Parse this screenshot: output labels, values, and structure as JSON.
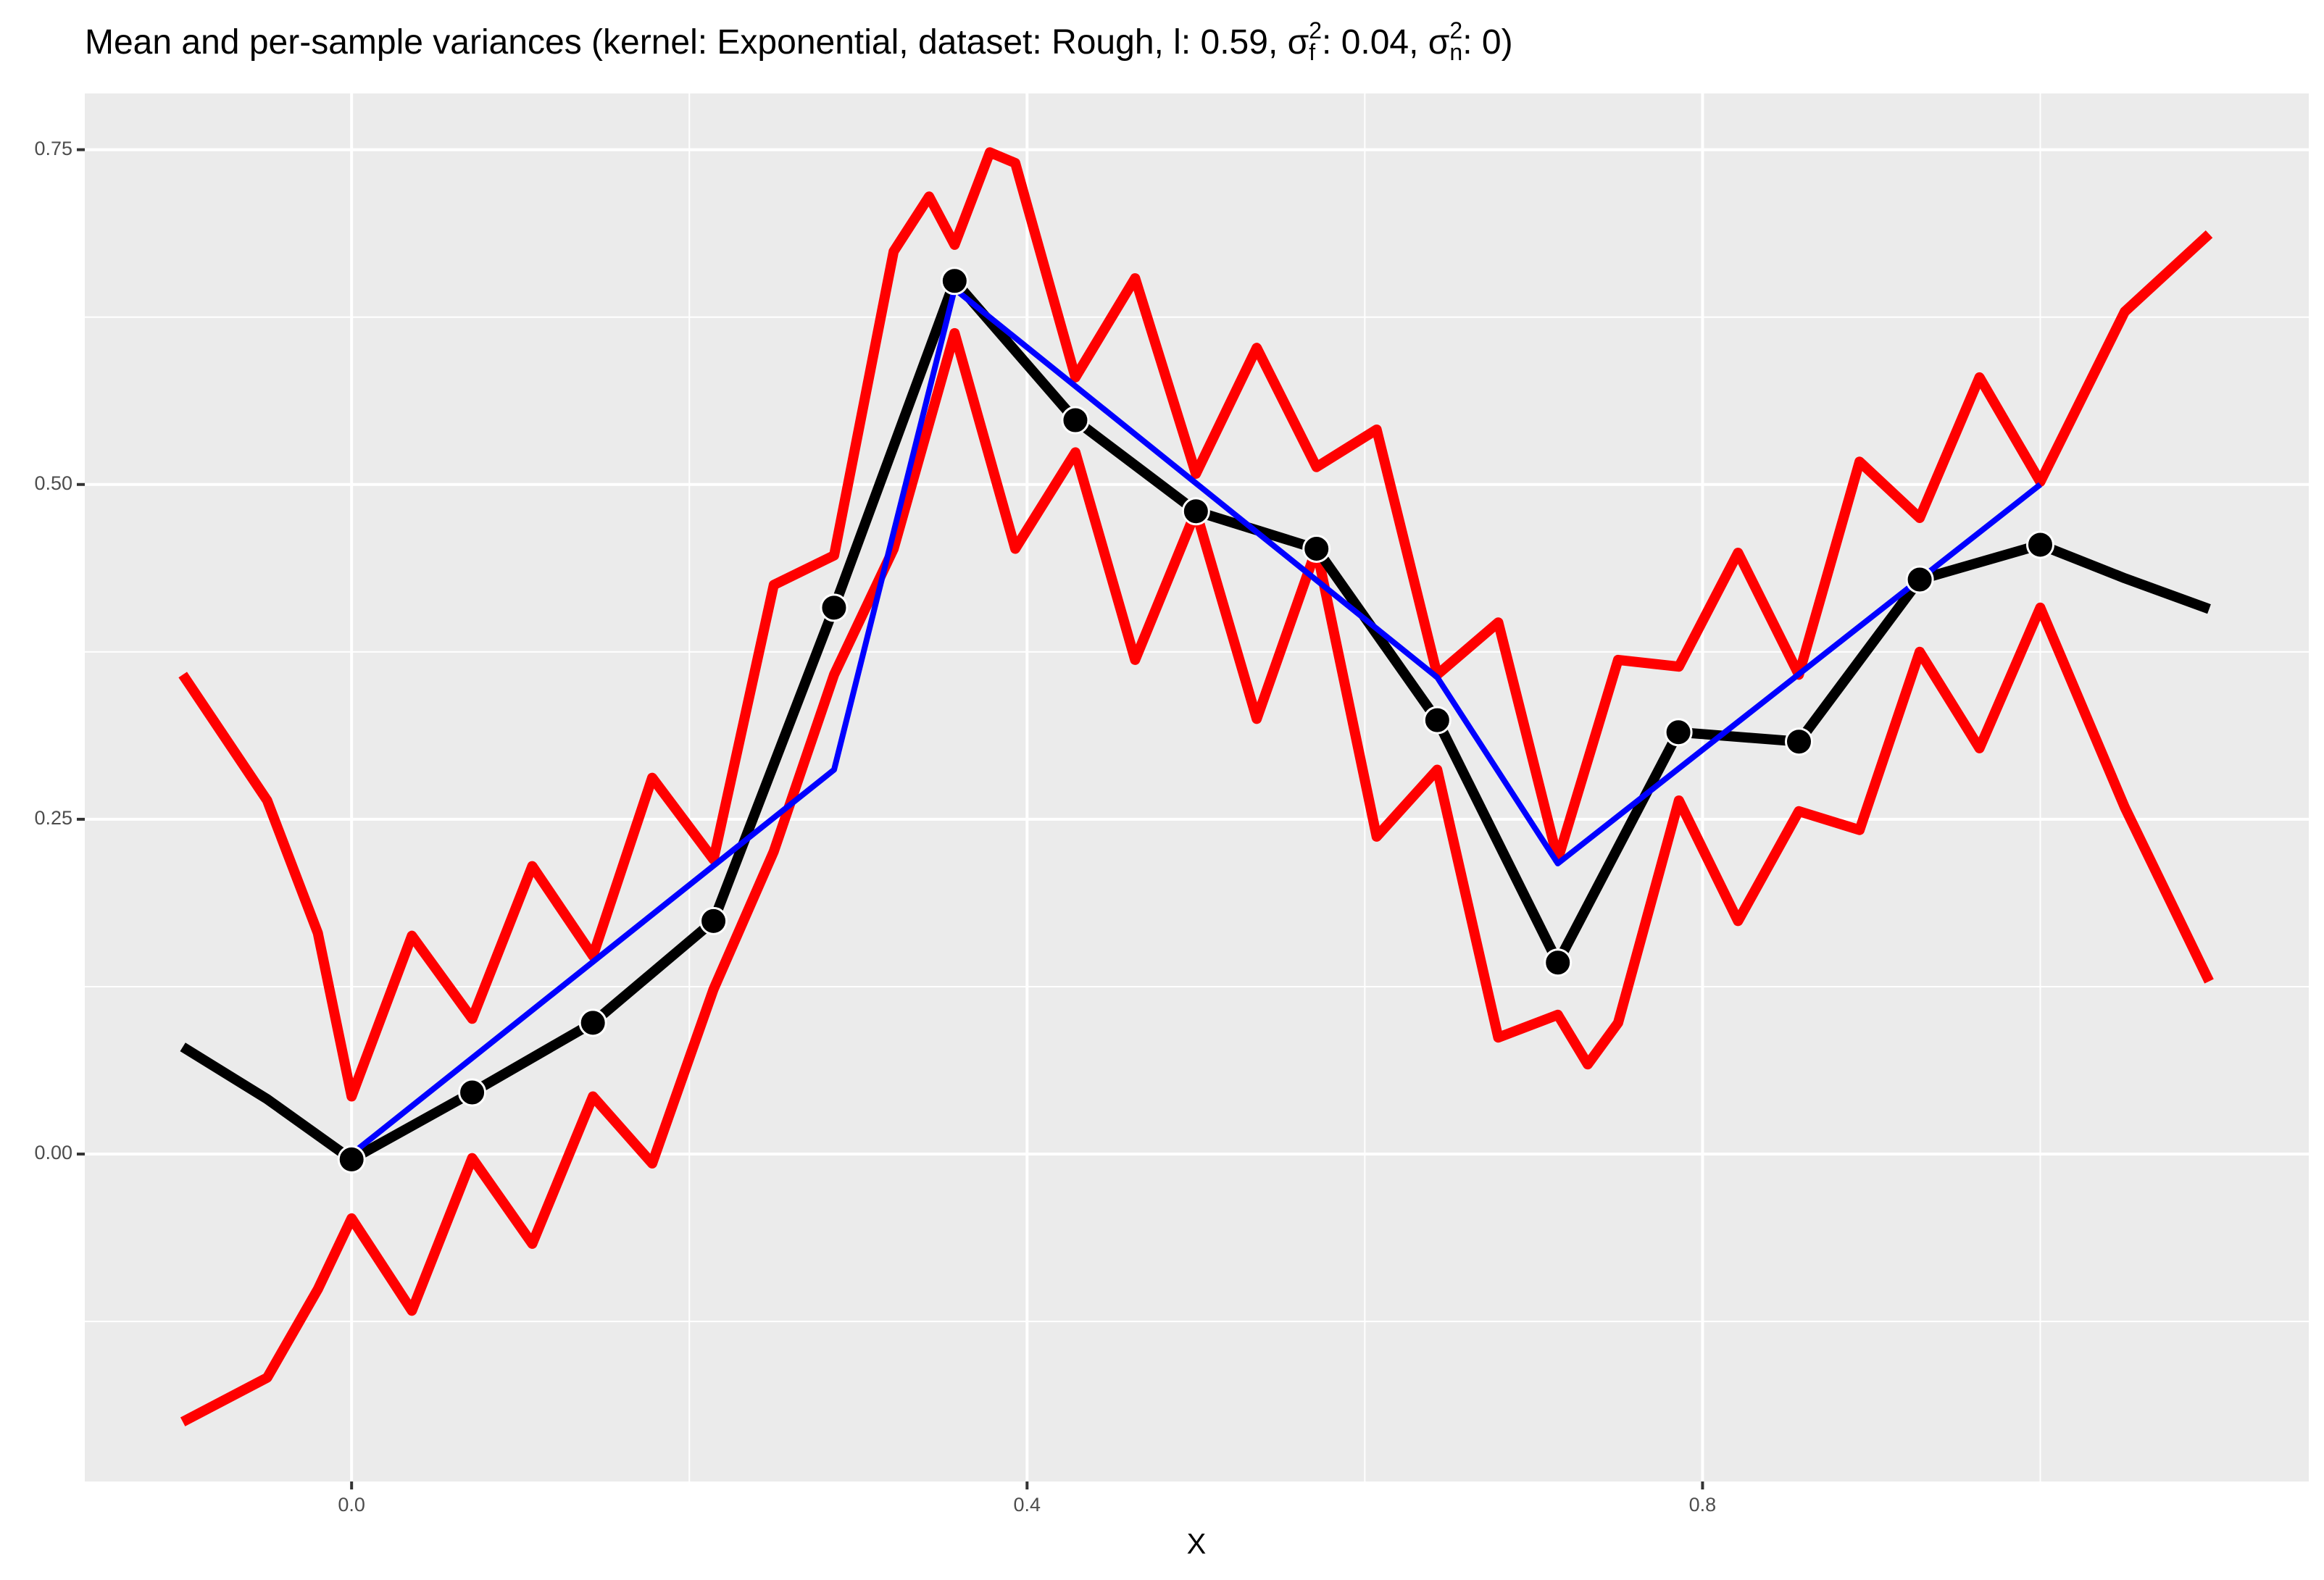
{
  "chart_data": {
    "type": "line",
    "title": [
      "Mean and per-sample variances (kernel: Exponential, dataset: Rough, l: 0.59, σ",
      "f",
      "2",
      ": 0.04, σ",
      "n",
      "2",
      ": 0)"
    ],
    "title_style": [
      "normal",
      "sub",
      "sup",
      "normal",
      "sub",
      "sup",
      "normal"
    ],
    "x_label": "X",
    "xlim": [
      -0.158,
      1.159
    ],
    "ylim": [
      -0.2445,
      0.792
    ],
    "xticks": [
      {
        "value": 0,
        "label": "0.0"
      },
      {
        "value": 0.4,
        "label": "0.4"
      },
      {
        "value": 0.8,
        "label": "0.8"
      }
    ],
    "yticks": [
      {
        "value": 0,
        "label": "0.00"
      },
      {
        "value": 0.25,
        "label": "0.25"
      },
      {
        "value": 0.5,
        "label": "0.50"
      },
      {
        "value": 0.75,
        "label": "0.75"
      }
    ],
    "x_minor_grid": [
      0.2,
      0.6,
      1.0
    ],
    "y_minor_grid": [
      -0.125,
      0.125,
      0.375,
      0.625
    ],
    "grid": true,
    "series": [
      {
        "color": "#ff0000",
        "kind": "line",
        "width": 14,
        "x": [
          -0.1,
          -0.05,
          -0.02,
          0,
          0.0357,
          0.0714,
          0.107,
          0.1429,
          0.178,
          0.2143,
          0.25,
          0.2857,
          0.321,
          0.342,
          0.3571,
          0.378,
          0.393,
          0.4286,
          0.464,
          0.5,
          0.536,
          0.5714,
          0.607,
          0.6429,
          0.679,
          0.7143,
          0.75,
          0.786,
          0.821,
          0.857,
          0.893,
          0.9286,
          0.964,
          1.0,
          1.05,
          1.1
        ],
        "values": [
          0.358,
          0.264,
          0.165,
          0.043,
          0.163,
          0.101,
          0.215,
          0.148,
          0.281,
          0.22,
          0.425,
          0.447,
          0.674,
          0.715,
          0.679,
          0.748,
          0.74,
          0.58,
          0.654,
          0.508,
          0.602,
          0.513,
          0.541,
          0.358,
          0.397,
          0.22,
          0.369,
          0.364,
          0.449,
          0.358,
          0.517,
          0.475,
          0.58,
          0.502,
          0.629,
          0.687
        ]
      },
      {
        "color": "#ff0000",
        "kind": "line",
        "width": 14,
        "x": [
          -0.1,
          -0.05,
          -0.02,
          0,
          0.0357,
          0.0714,
          0.107,
          0.1429,
          0.178,
          0.2143,
          0.25,
          0.2857,
          0.321,
          0.3571,
          0.393,
          0.4286,
          0.464,
          0.5,
          0.536,
          0.5714,
          0.607,
          0.6429,
          0.679,
          0.7143,
          0.732,
          0.75,
          0.786,
          0.821,
          0.857,
          0.893,
          0.9286,
          0.964,
          1.0,
          1.05,
          1.1
        ],
        "values": [
          -0.2,
          -0.167,
          -0.101,
          -0.048,
          -0.117,
          -0.003,
          -0.067,
          0.043,
          -0.007,
          0.123,
          0.226,
          0.358,
          0.452,
          0.613,
          0.452,
          0.524,
          0.369,
          0.48,
          0.325,
          0.452,
          0.237,
          0.287,
          0.087,
          0.104,
          0.067,
          0.098,
          0.264,
          0.174,
          0.256,
          0.242,
          0.375,
          0.303,
          0.408,
          0.259,
          0.129
        ]
      },
      {
        "color": "#000000",
        "kind": "line",
        "width": 14,
        "x": [
          -0.1,
          -0.05,
          0,
          0.0714,
          0.1429,
          0.2143,
          0.2857,
          0.3571,
          0.4286,
          0.5,
          0.5714,
          0.6429,
          0.7143,
          0.7857,
          0.8571,
          0.9286,
          1.0,
          1.05,
          1.1
        ],
        "values": [
          0.08,
          0.041,
          -0.004,
          0.046,
          0.098,
          0.174,
          0.408,
          0.652,
          0.548,
          0.48,
          0.452,
          0.324,
          0.143,
          0.315,
          0.308,
          0.429,
          0.455,
          0.43,
          0.407
        ]
      },
      {
        "color": "#0000ff",
        "kind": "line",
        "width": 8,
        "x": [
          0,
          0.2857,
          0.3571,
          0.6429,
          0.7143,
          1.0
        ],
        "values": [
          0,
          0.287,
          0.646,
          0.356,
          0.217,
          0.5
        ]
      },
      {
        "color": "#000000",
        "kind": "point",
        "width": 18,
        "x": [
          0,
          0.0714,
          0.1429,
          0.2143,
          0.2857,
          0.3571,
          0.4286,
          0.5,
          0.5714,
          0.6429,
          0.7143,
          0.7857,
          0.8571,
          0.9286,
          1.0
        ],
        "values": [
          -0.004,
          0.046,
          0.098,
          0.174,
          0.408,
          0.652,
          0.548,
          0.48,
          0.452,
          0.324,
          0.143,
          0.315,
          0.308,
          0.429,
          0.455
        ]
      }
    ]
  }
}
